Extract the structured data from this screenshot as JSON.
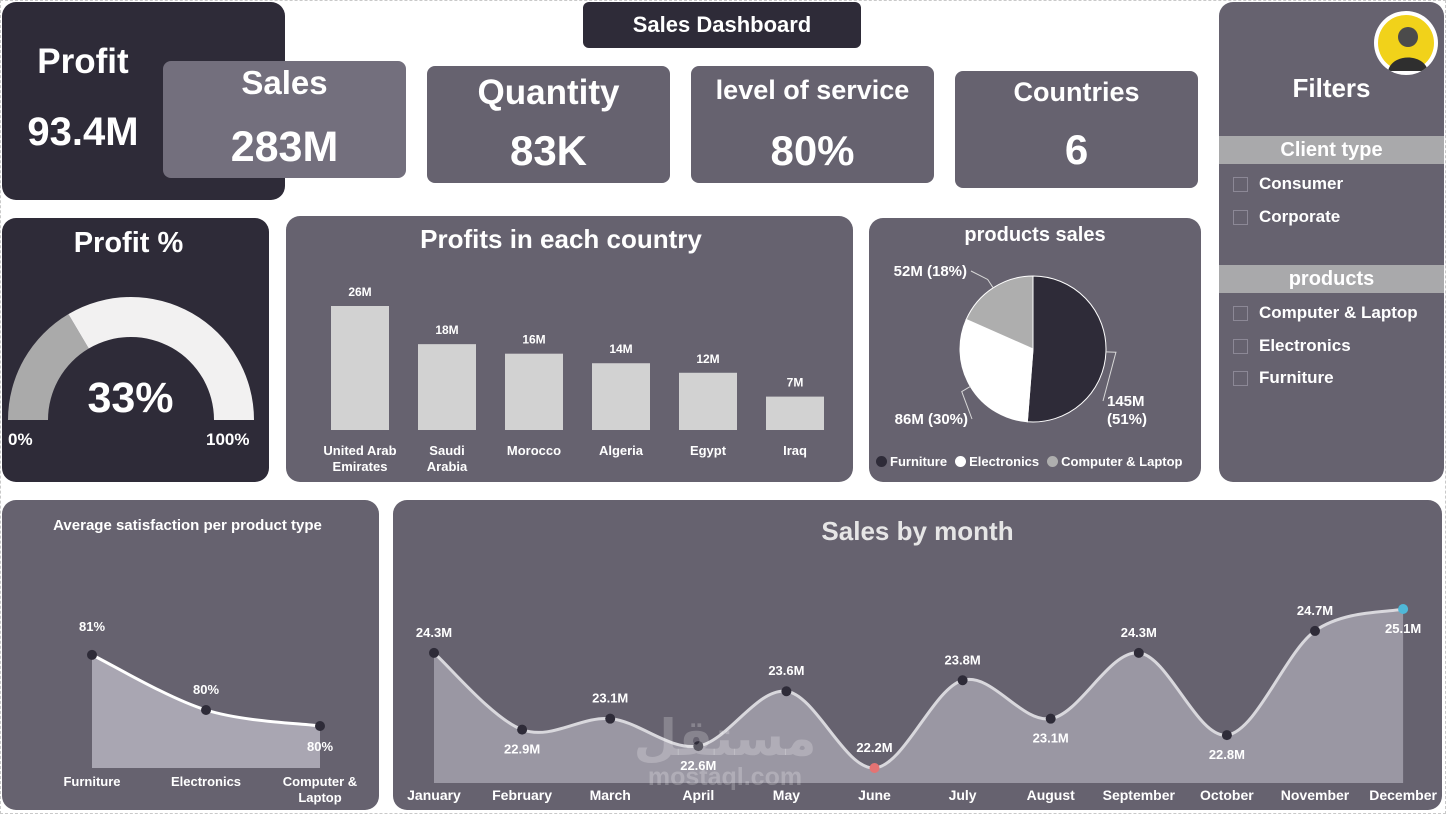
{
  "header": {
    "title": "Sales Dashboard"
  },
  "kpis": {
    "profit": {
      "label": "Profit",
      "value": "93.4M"
    },
    "sales": {
      "label": "Sales",
      "value": "283M"
    },
    "quantity": {
      "label": "Quantity",
      "value": "83K"
    },
    "service": {
      "label": "level of service",
      "value": "80%"
    },
    "countries": {
      "label": "Countries",
      "value": "6"
    }
  },
  "gauge": {
    "title": "Profit %",
    "value_label": "33%",
    "value": 33,
    "min_label": "0%",
    "max_label": "100%",
    "fill_color": "#f2f1f1",
    "track_color": "#aaaaaa"
  },
  "filters": {
    "title": "Filters",
    "avatar_icon": "user-avatar-icon",
    "groups": [
      {
        "label": "Client type",
        "items": [
          "Consumer",
          "Corporate"
        ]
      },
      {
        "label": "products",
        "items": [
          "Computer & Laptop",
          "Electronics",
          "Furniture"
        ]
      }
    ]
  },
  "watermark": {
    "arabic": "مستقل",
    "latin": "mostaql.com"
  },
  "chart_data": [
    {
      "type": "bar",
      "title": "Profits in each country",
      "categories": [
        "United Arab Emirates",
        "Saudi Arabia",
        "Morocco",
        "Algeria",
        "Egypt",
        "Iraq"
      ],
      "category_lines": [
        [
          "United Arab",
          "Emirates"
        ],
        [
          "Saudi",
          "Arabia"
        ],
        [
          "Morocco"
        ],
        [
          "Algeria"
        ],
        [
          "Egypt"
        ],
        [
          "Iraq"
        ]
      ],
      "values": [
        26,
        18,
        16,
        14,
        12,
        7
      ],
      "data_labels": [
        "26M",
        "18M",
        "16M",
        "14M",
        "12M",
        "7M"
      ],
      "bar_color": "#d2d2d2",
      "grid": false
    },
    {
      "type": "pie",
      "title": "products sales",
      "labels": [
        "Furniture",
        "Electronics",
        "Computer & Laptop"
      ],
      "values": [
        145,
        86,
        52
      ],
      "percents": [
        51,
        30,
        18
      ],
      "data_labels": [
        [
          "145M",
          "(51%)"
        ],
        [
          "86M (30%)"
        ],
        [
          "52M (18%)"
        ]
      ],
      "colors": [
        "#2e2b38",
        "#ffffff",
        "#aeaeae"
      ],
      "legend": "bottom"
    },
    {
      "type": "area",
      "title": "Average satisfaction per product type",
      "categories": [
        "Furniture",
        "Electronics",
        "Computer & Laptop"
      ],
      "category_lines": [
        [
          "Furniture"
        ],
        [
          "Electronics"
        ],
        [
          "Computer &",
          "Laptop"
        ]
      ],
      "values": [
        81,
        80,
        80
      ],
      "data_labels": [
        "81%",
        "80%",
        "80%"
      ]
    },
    {
      "type": "area",
      "title": "Sales by month",
      "categories": [
        "January",
        "February",
        "March",
        "April",
        "May",
        "June",
        "July",
        "August",
        "September",
        "October",
        "November",
        "December"
      ],
      "values": [
        24.3,
        22.9,
        23.1,
        22.6,
        23.6,
        22.2,
        23.8,
        23.1,
        24.3,
        22.8,
        24.7,
        25.1
      ],
      "data_labels": [
        "24.3M",
        "22.9M",
        "23.1M",
        "22.6M",
        "23.6M",
        "22.2M",
        "23.8M",
        "23.1M",
        "24.3M",
        "22.8M",
        "24.7M",
        "25.1M"
      ],
      "min_color": "#e57373",
      "max_color": "#4fb8d8",
      "ylim": [
        22.2,
        25.1
      ]
    }
  ]
}
